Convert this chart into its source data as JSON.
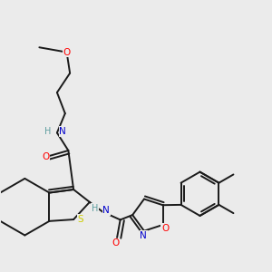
{
  "background_color": "#ebebeb",
  "bond_color": "#1a1a1a",
  "atom_colors": {
    "O": "#ff0000",
    "N": "#0000cd",
    "S": "#cccc00",
    "H": "#5f9ea0",
    "C": "#1a1a1a"
  }
}
